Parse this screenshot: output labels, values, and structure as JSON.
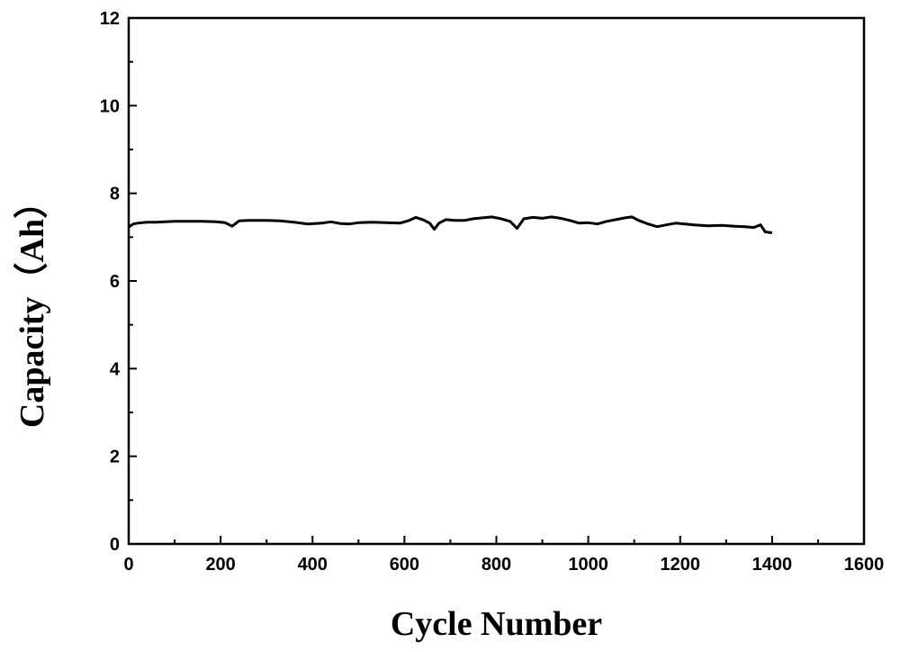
{
  "chart_data": {
    "type": "line",
    "xlabel": "Cycle Number",
    "ylabel": "Capacity（Ah）",
    "xlim": [
      0,
      1600
    ],
    "ylim": [
      0,
      12
    ],
    "xticks": [
      0,
      200,
      400,
      600,
      800,
      1000,
      1200,
      1400,
      1600
    ],
    "yticks": [
      0,
      2,
      4,
      6,
      8,
      10,
      12
    ],
    "grid": false,
    "legend": "none",
    "line_color": "#000000",
    "series": [
      {
        "x": [
          0,
          10,
          20,
          40,
          60,
          80,
          100,
          130,
          160,
          190,
          210,
          225,
          240,
          260,
          280,
          300,
          330,
          360,
          390,
          420,
          440,
          460,
          480,
          500,
          530,
          560,
          590,
          610,
          625,
          640,
          655,
          665,
          675,
          690,
          710,
          730,
          750,
          770,
          790,
          810,
          830,
          845,
          860,
          880,
          900,
          920,
          940,
          960,
          980,
          1000,
          1020,
          1040,
          1060,
          1080,
          1095,
          1110,
          1130,
          1150,
          1170,
          1190,
          1210,
          1230,
          1260,
          1290,
          1320,
          1340,
          1360,
          1375,
          1385,
          1400
        ],
        "y": [
          7.23,
          7.3,
          7.32,
          7.34,
          7.34,
          7.35,
          7.36,
          7.36,
          7.36,
          7.35,
          7.33,
          7.25,
          7.37,
          7.38,
          7.38,
          7.38,
          7.37,
          7.34,
          7.3,
          7.32,
          7.35,
          7.31,
          7.3,
          7.33,
          7.34,
          7.33,
          7.32,
          7.38,
          7.45,
          7.4,
          7.32,
          7.18,
          7.32,
          7.4,
          7.38,
          7.38,
          7.42,
          7.44,
          7.46,
          7.42,
          7.36,
          7.2,
          7.42,
          7.45,
          7.43,
          7.46,
          7.43,
          7.38,
          7.32,
          7.33,
          7.3,
          7.36,
          7.4,
          7.44,
          7.46,
          7.38,
          7.3,
          7.24,
          7.28,
          7.32,
          7.3,
          7.28,
          7.26,
          7.27,
          7.25,
          7.24,
          7.22,
          7.28,
          7.12,
          7.1
        ]
      }
    ]
  }
}
